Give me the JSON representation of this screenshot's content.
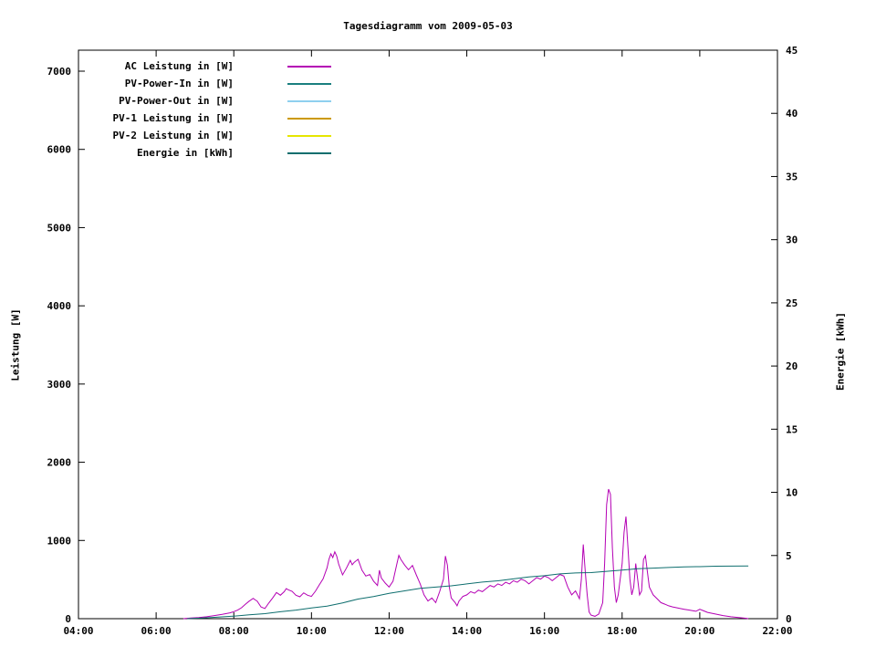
{
  "chart": {
    "title": "Tagesdiagramm vom 2009-05-03",
    "left_axis": {
      "label": "Leistung [W]",
      "min": 0,
      "max": 7270,
      "tick_values": [
        0,
        1000,
        2000,
        3000,
        4000,
        5000,
        6000,
        7000
      ],
      "tick_labels": [
        "0",
        "1000",
        "2000",
        "3000",
        "4000",
        "5000",
        "6000",
        "7000"
      ]
    },
    "right_axis": {
      "label": "Energie [kWh]",
      "min": 0,
      "max": 45,
      "tick_values": [
        0,
        5,
        10,
        15,
        20,
        25,
        30,
        35,
        40,
        45
      ],
      "tick_labels": [
        "0",
        "5",
        "10",
        "15",
        "20",
        "25",
        "30",
        "35",
        "40",
        "45"
      ]
    },
    "x_axis": {
      "min": 4,
      "max": 22,
      "tick_values": [
        4,
        6,
        8,
        10,
        12,
        14,
        16,
        18,
        20,
        22
      ],
      "tick_labels": [
        "04:00",
        "06:00",
        "08:00",
        "10:00",
        "12:00",
        "14:00",
        "16:00",
        "18:00",
        "20:00",
        "22:00"
      ]
    }
  },
  "chart_data": {
    "type": "line",
    "title": "Tagesdiagramm vom 2009-05-03",
    "xlabel": "",
    "ylabel_left": "Leistung [W]",
    "ylabel_right": "Energie [kWh]",
    "x_range_hours": [
      4,
      22
    ],
    "left_ylim": [
      0,
      7270
    ],
    "right_ylim": [
      0,
      45
    ],
    "grid": false,
    "legend_position": "top-left-inside",
    "series": [
      {
        "name": "AC Leistung in [W]",
        "color": "#b400b4",
        "axis": "left",
        "points": [
          [
            6.7,
            0
          ],
          [
            6.9,
            8
          ],
          [
            7.1,
            15
          ],
          [
            7.3,
            25
          ],
          [
            7.5,
            40
          ],
          [
            7.7,
            55
          ],
          [
            7.9,
            75
          ],
          [
            8.0,
            90
          ],
          [
            8.1,
            110
          ],
          [
            8.2,
            140
          ],
          [
            8.3,
            185
          ],
          [
            8.4,
            225
          ],
          [
            8.5,
            260
          ],
          [
            8.55,
            240
          ],
          [
            8.6,
            225
          ],
          [
            8.7,
            150
          ],
          [
            8.8,
            130
          ],
          [
            8.9,
            200
          ],
          [
            9.0,
            265
          ],
          [
            9.05,
            300
          ],
          [
            9.1,
            335
          ],
          [
            9.2,
            300
          ],
          [
            9.3,
            345
          ],
          [
            9.35,
            385
          ],
          [
            9.4,
            370
          ],
          [
            9.5,
            350
          ],
          [
            9.6,
            300
          ],
          [
            9.7,
            280
          ],
          [
            9.8,
            330
          ],
          [
            9.9,
            300
          ],
          [
            10.0,
            285
          ],
          [
            10.1,
            350
          ],
          [
            10.2,
            430
          ],
          [
            10.3,
            510
          ],
          [
            10.4,
            650
          ],
          [
            10.45,
            760
          ],
          [
            10.5,
            830
          ],
          [
            10.55,
            780
          ],
          [
            10.6,
            855
          ],
          [
            10.65,
            800
          ],
          [
            10.7,
            700
          ],
          [
            10.8,
            560
          ],
          [
            10.9,
            645
          ],
          [
            11.0,
            745
          ],
          [
            11.05,
            690
          ],
          [
            11.1,
            720
          ],
          [
            11.2,
            760
          ],
          [
            11.3,
            620
          ],
          [
            11.4,
            545
          ],
          [
            11.5,
            565
          ],
          [
            11.6,
            480
          ],
          [
            11.7,
            425
          ],
          [
            11.75,
            620
          ],
          [
            11.8,
            520
          ],
          [
            11.9,
            455
          ],
          [
            12.0,
            405
          ],
          [
            12.1,
            480
          ],
          [
            12.2,
            705
          ],
          [
            12.25,
            810
          ],
          [
            12.3,
            760
          ],
          [
            12.4,
            685
          ],
          [
            12.5,
            625
          ],
          [
            12.6,
            680
          ],
          [
            12.7,
            560
          ],
          [
            12.8,
            445
          ],
          [
            12.9,
            305
          ],
          [
            13.0,
            225
          ],
          [
            13.1,
            265
          ],
          [
            13.2,
            205
          ],
          [
            13.3,
            345
          ],
          [
            13.4,
            505
          ],
          [
            13.45,
            800
          ],
          [
            13.5,
            685
          ],
          [
            13.55,
            405
          ],
          [
            13.6,
            265
          ],
          [
            13.7,
            205
          ],
          [
            13.75,
            165
          ],
          [
            13.8,
            225
          ],
          [
            13.9,
            285
          ],
          [
            14.0,
            305
          ],
          [
            14.1,
            345
          ],
          [
            14.2,
            325
          ],
          [
            14.3,
            365
          ],
          [
            14.4,
            345
          ],
          [
            14.5,
            385
          ],
          [
            14.6,
            425
          ],
          [
            14.7,
            405
          ],
          [
            14.8,
            445
          ],
          [
            14.9,
            425
          ],
          [
            15.0,
            465
          ],
          [
            15.1,
            445
          ],
          [
            15.2,
            485
          ],
          [
            15.3,
            465
          ],
          [
            15.4,
            505
          ],
          [
            15.5,
            485
          ],
          [
            15.6,
            445
          ],
          [
            15.7,
            485
          ],
          [
            15.8,
            525
          ],
          [
            15.9,
            505
          ],
          [
            16.0,
            545
          ],
          [
            16.1,
            525
          ],
          [
            16.2,
            485
          ],
          [
            16.3,
            525
          ],
          [
            16.4,
            565
          ],
          [
            16.5,
            545
          ],
          [
            16.6,
            405
          ],
          [
            16.7,
            305
          ],
          [
            16.8,
            355
          ],
          [
            16.9,
            255
          ],
          [
            16.95,
            500
          ],
          [
            17.0,
            950
          ],
          [
            17.05,
            600
          ],
          [
            17.1,
            305
          ],
          [
            17.15,
            85
          ],
          [
            17.2,
            45
          ],
          [
            17.3,
            30
          ],
          [
            17.4,
            60
          ],
          [
            17.5,
            205
          ],
          [
            17.55,
            705
          ],
          [
            17.6,
            1460
          ],
          [
            17.65,
            1655
          ],
          [
            17.7,
            1590
          ],
          [
            17.75,
            905
          ],
          [
            17.8,
            405
          ],
          [
            17.85,
            205
          ],
          [
            17.9,
            305
          ],
          [
            18.0,
            705
          ],
          [
            18.05,
            1105
          ],
          [
            18.1,
            1305
          ],
          [
            18.15,
            905
          ],
          [
            18.2,
            505
          ],
          [
            18.25,
            305
          ],
          [
            18.3,
            405
          ],
          [
            18.35,
            705
          ],
          [
            18.4,
            505
          ],
          [
            18.45,
            305
          ],
          [
            18.5,
            355
          ],
          [
            18.55,
            755
          ],
          [
            18.6,
            805
          ],
          [
            18.65,
            605
          ],
          [
            18.7,
            405
          ],
          [
            18.8,
            305
          ],
          [
            18.9,
            255
          ],
          [
            19.0,
            205
          ],
          [
            19.1,
            185
          ],
          [
            19.2,
            165
          ],
          [
            19.3,
            150
          ],
          [
            19.4,
            140
          ],
          [
            19.5,
            130
          ],
          [
            19.6,
            120
          ],
          [
            19.7,
            112
          ],
          [
            19.8,
            104
          ],
          [
            19.9,
            95
          ],
          [
            20.0,
            120
          ],
          [
            20.1,
            100
          ],
          [
            20.2,
            80
          ],
          [
            20.4,
            60
          ],
          [
            20.6,
            40
          ],
          [
            20.8,
            25
          ],
          [
            21.0,
            14
          ],
          [
            21.2,
            5
          ],
          [
            21.25,
            0
          ]
        ]
      },
      {
        "name": "PV-Power-In in [W]",
        "color": "#1a7f7f",
        "axis": "left",
        "points": []
      },
      {
        "name": "PV-Power-Out in [W]",
        "color": "#8fd0ef",
        "axis": "left",
        "points": []
      },
      {
        "name": "PV-1 Leistung in [W]",
        "color": "#cc9900",
        "axis": "left",
        "points": []
      },
      {
        "name": "PV-2 Leistung in [W]",
        "color": "#e6e600",
        "axis": "left",
        "points": []
      },
      {
        "name": "Energie in [kWh]",
        "color": "#0e6e6e",
        "axis": "right",
        "points": [
          [
            6.8,
            0
          ],
          [
            7.2,
            0.05
          ],
          [
            7.6,
            0.12
          ],
          [
            8.0,
            0.2
          ],
          [
            8.4,
            0.3
          ],
          [
            8.8,
            0.4
          ],
          [
            9.2,
            0.55
          ],
          [
            9.6,
            0.68
          ],
          [
            10.0,
            0.85
          ],
          [
            10.4,
            1.0
          ],
          [
            10.8,
            1.25
          ],
          [
            11.2,
            1.55
          ],
          [
            11.6,
            1.75
          ],
          [
            12.0,
            2.0
          ],
          [
            12.4,
            2.2
          ],
          [
            12.8,
            2.4
          ],
          [
            13.2,
            2.5
          ],
          [
            13.6,
            2.6
          ],
          [
            14.0,
            2.75
          ],
          [
            14.4,
            2.9
          ],
          [
            14.8,
            3.0
          ],
          [
            15.2,
            3.15
          ],
          [
            15.6,
            3.3
          ],
          [
            16.0,
            3.4
          ],
          [
            16.4,
            3.55
          ],
          [
            16.8,
            3.62
          ],
          [
            17.2,
            3.65
          ],
          [
            17.6,
            3.75
          ],
          [
            18.0,
            3.85
          ],
          [
            18.4,
            3.95
          ],
          [
            18.8,
            4.0
          ],
          [
            19.2,
            4.05
          ],
          [
            19.6,
            4.1
          ],
          [
            20.0,
            4.12
          ],
          [
            20.4,
            4.15
          ],
          [
            20.8,
            4.16
          ],
          [
            21.25,
            4.17
          ]
        ]
      }
    ]
  }
}
